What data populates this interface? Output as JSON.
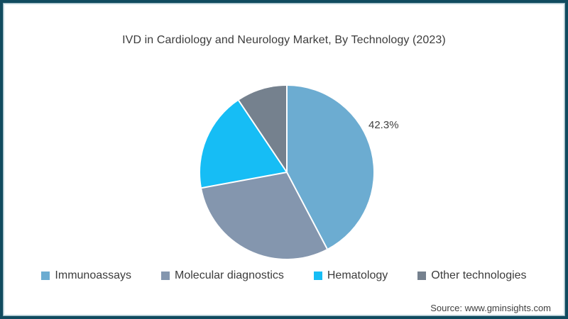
{
  "page": {
    "title": "IVD in Cardiology and Neurology Market, By Technology (2023)",
    "source": "Source: www.gminsights.com"
  },
  "colors": {
    "frame_border": "#114b5f",
    "text": "#3c3c3c",
    "background": "#ffffff",
    "slice_divider": "#ffffff"
  },
  "chart_data": {
    "type": "pie",
    "title": "IVD in Cardiology and Neurology Market, By Technology (2023)",
    "start_angle_deg": 0,
    "direction": "clockwise",
    "legend_position": "bottom",
    "data_label": "42.3%",
    "series": [
      {
        "name": "Immunoassays",
        "value": 42.3,
        "color": "#6cacd1",
        "label": "42.3%"
      },
      {
        "name": "Molecular diagnostics",
        "value": 29.8,
        "color": "#8496ae",
        "label": ""
      },
      {
        "name": "Hematology",
        "value": 18.5,
        "color": "#16bdf5",
        "label": ""
      },
      {
        "name": "Other technologies",
        "value": 9.4,
        "color": "#75818e",
        "label": ""
      }
    ]
  }
}
